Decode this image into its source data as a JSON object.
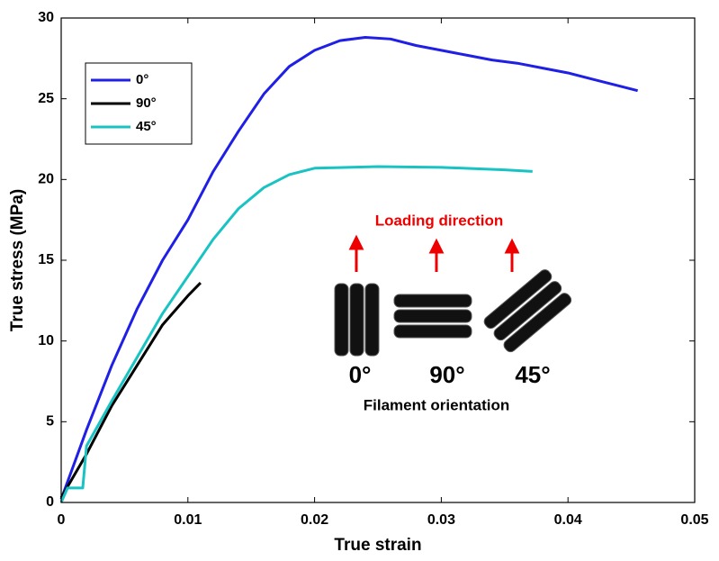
{
  "chart_data": {
    "type": "line",
    "xlabel": "True strain",
    "ylabel": "True stress (MPa)",
    "xlim": [
      0,
      0.05
    ],
    "xticks": [
      0,
      0.01,
      0.02,
      0.03,
      0.04,
      0.05
    ],
    "ylim": [
      0,
      30
    ],
    "yticks": [
      0,
      5,
      10,
      15,
      20,
      25,
      30
    ],
    "legend": "upper left",
    "series": [
      {
        "name": "0°",
        "color": "#1f1fe6",
        "x": [
          0,
          0.002,
          0.004,
          0.006,
          0.008,
          0.01,
          0.012,
          0.014,
          0.016,
          0.018,
          0.02,
          0.022,
          0.024,
          0.026,
          0.028,
          0.03,
          0.032,
          0.034,
          0.036,
          0.038,
          0.04,
          0.042,
          0.044,
          0.0455
        ],
        "values": [
          0.2,
          4.5,
          8.5,
          12,
          15,
          17.5,
          20.5,
          23,
          25.3,
          27,
          28,
          28.6,
          28.8,
          28.7,
          28.3,
          28,
          27.7,
          27.4,
          27.2,
          26.9,
          26.6,
          26.2,
          25.8,
          25.5
        ]
      },
      {
        "name": "90°",
        "color": "#000000",
        "x": [
          0,
          0.002,
          0.004,
          0.006,
          0.008,
          0.01,
          0.011
        ],
        "values": [
          0.3,
          3,
          6,
          8.5,
          11,
          12.8,
          13.6
        ]
      },
      {
        "name": "45°",
        "color": "#19c3c3",
        "x": [
          0,
          0.0005,
          0.0017,
          0.002,
          0.004,
          0.006,
          0.008,
          0.01,
          0.012,
          0.014,
          0.016,
          0.018,
          0.02,
          0.025,
          0.03,
          0.035,
          0.0372
        ],
        "values": [
          0,
          0.9,
          0.9,
          3.5,
          6.3,
          9,
          11.7,
          14,
          16.3,
          18.2,
          19.5,
          20.3,
          20.7,
          20.8,
          20.75,
          20.6,
          20.5
        ]
      }
    ],
    "annotations": {
      "loading": "Loading direction",
      "orientations": [
        "0°",
        "90°",
        "45°"
      ],
      "caption": "Filament orientation"
    }
  }
}
